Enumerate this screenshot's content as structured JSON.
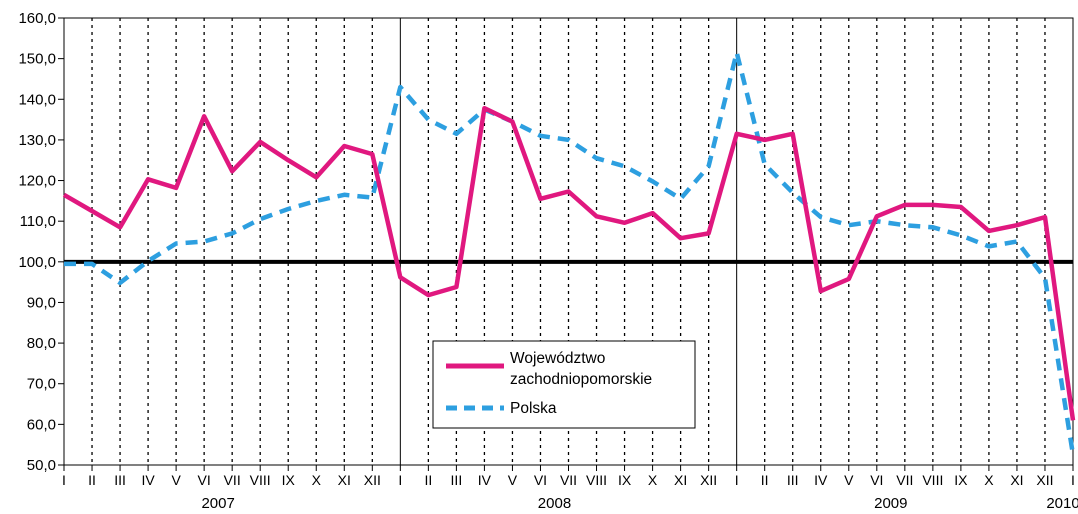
{
  "chart_data": {
    "type": "line",
    "title": "",
    "xlabel": "",
    "ylabel": "",
    "ylim": [
      50,
      160
    ],
    "yticks": [
      "160,0",
      "150,0",
      "140,0",
      "130,0",
      "120,0",
      "110,0",
      "100,0",
      "90,0",
      "80,0",
      "70,0",
      "60,0",
      "50,0"
    ],
    "reference_line": 100,
    "grid": "vertical-dotted-monthly",
    "legend_position": "center-bottom",
    "months": [
      "I",
      "II",
      "III",
      "IV",
      "V",
      "VI",
      "VII",
      "VIII",
      "IX",
      "X",
      "XI",
      "XII",
      "I",
      "II",
      "III",
      "IV",
      "V",
      "VI",
      "VII",
      "VIII",
      "IX",
      "X",
      "XI",
      "XII",
      "I",
      "II",
      "III",
      "IV",
      "V",
      "VI",
      "VII",
      "VIII",
      "IX",
      "X",
      "XI",
      "XII",
      "I"
    ],
    "years": [
      {
        "label": "2007",
        "start": 0,
        "end": 11
      },
      {
        "label": "2008",
        "start": 12,
        "end": 23
      },
      {
        "label": "2009",
        "start": 24,
        "end": 35
      },
      {
        "label": "2010",
        "start": 36,
        "end": 36
      }
    ],
    "series": [
      {
        "name": "Województwo zachodniopomorskie",
        "color": "#e0187f",
        "style": "solid",
        "values": [
          116.5,
          112.5,
          108.5,
          120.3,
          118.2,
          135.8,
          122.3,
          129.5,
          125.0,
          120.8,
          128.5,
          126.5,
          96.2,
          91.8,
          93.8,
          137.8,
          134.5,
          115.5,
          117.3,
          111.2,
          109.6,
          112.0,
          105.8,
          107.0,
          131.5,
          130.0,
          131.5,
          92.8,
          95.8,
          111.2,
          114.0,
          114.0,
          113.5,
          107.6,
          109.0,
          111.0,
          61.0
        ]
      },
      {
        "name": "Polska",
        "color": "#2d9fe0",
        "style": "dashed",
        "values": [
          99.5,
          99.5,
          94.8,
          100.2,
          104.5,
          105.0,
          107.0,
          110.5,
          113.0,
          115.0,
          116.5,
          115.8,
          143.0,
          135.0,
          131.5,
          137.5,
          134.5,
          131.0,
          130.0,
          125.5,
          123.5,
          119.8,
          115.5,
          123.5,
          151.5,
          124.0,
          117.0,
          111.0,
          109.0,
          110.0,
          109.0,
          108.5,
          106.5,
          103.8,
          105.0,
          96.0,
          52.5
        ]
      }
    ]
  },
  "legend": {
    "items": [
      {
        "lines": [
          "Województwo",
          "zachodniopomorskie"
        ],
        "color": "#e0187f",
        "style": "solid"
      },
      {
        "lines": [
          "Polska"
        ],
        "color": "#2d9fe0",
        "style": "dashed"
      }
    ]
  }
}
